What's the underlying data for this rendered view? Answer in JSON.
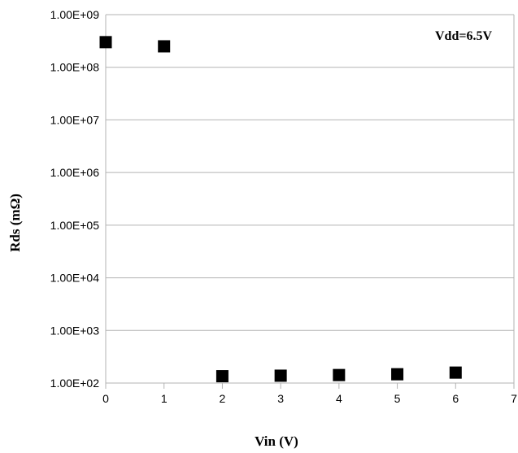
{
  "chart_data": {
    "type": "scatter",
    "title": "",
    "xlabel": "Vin (V)",
    "ylabel": "Rds (mΩ)",
    "annotation": "Vdd=6.5V",
    "x_scale": "linear",
    "y_scale": "log",
    "xlim": [
      0,
      7
    ],
    "ylim": [
      100,
      1000000000
    ],
    "x_ticks": [
      0,
      1,
      2,
      3,
      4,
      5,
      6,
      7
    ],
    "x_tick_labels": [
      "0",
      "1",
      "2",
      "3",
      "4",
      "5",
      "6",
      "7"
    ],
    "y_ticks": [
      100,
      1000,
      10000,
      100000,
      1000000,
      10000000,
      100000000,
      1000000000
    ],
    "y_tick_labels": [
      "1.00E+02",
      "1.00E+03",
      "1.00E+04",
      "1.00E+05",
      "1.00E+06",
      "1.00E+07",
      "1.00E+08",
      "1.00E+09"
    ],
    "grid": "horizontal",
    "series": [
      {
        "marker": "square",
        "color": "#000000",
        "points": [
          {
            "x": 0,
            "y": 300000000
          },
          {
            "x": 1,
            "y": 250000000
          },
          {
            "x": 2,
            "y": 135
          },
          {
            "x": 3,
            "y": 138
          },
          {
            "x": 4,
            "y": 142
          },
          {
            "x": 5,
            "y": 147
          },
          {
            "x": 6,
            "y": 158
          }
        ]
      }
    ]
  }
}
